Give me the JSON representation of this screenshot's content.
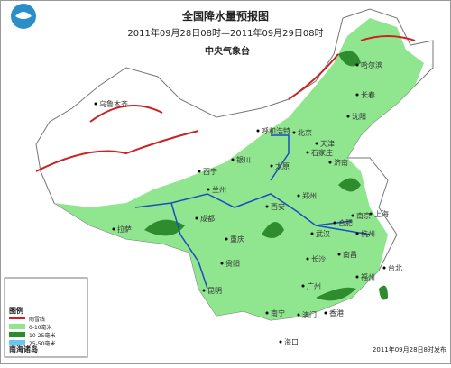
{
  "header": {
    "title": "全国降水量预报图",
    "subtitle": "2011年09月28日08时—2011年09月29日08时",
    "agency": "中央气象台"
  },
  "legend": {
    "title": "图例",
    "items": [
      {
        "label": "雨雪线",
        "color": "#cc2222"
      },
      {
        "label": "0-10毫米",
        "color": "#8fe68f"
      },
      {
        "label": "10-25毫米",
        "color": "#2e8b2e"
      },
      {
        "label": "25-50毫米",
        "color": "#66c8f0"
      }
    ]
  },
  "inset": {
    "label": "南海诸岛"
  },
  "footer": "2011年09月28日8时发布",
  "cities": [
    {
      "label": "乌鲁木齐"
    },
    {
      "label": "哈尔滨"
    },
    {
      "label": "长春"
    },
    {
      "label": "沈阳"
    },
    {
      "label": "北京"
    },
    {
      "label": "天津"
    },
    {
      "label": "石家庄"
    },
    {
      "label": "太原"
    },
    {
      "label": "呼和浩特"
    },
    {
      "label": "银川"
    },
    {
      "label": "西宁"
    },
    {
      "label": "兰州"
    },
    {
      "label": "济南"
    },
    {
      "label": "郑州"
    },
    {
      "label": "西安"
    },
    {
      "label": "成都"
    },
    {
      "label": "重庆"
    },
    {
      "label": "武汉"
    },
    {
      "label": "合肥"
    },
    {
      "label": "南京"
    },
    {
      "label": "上海"
    },
    {
      "label": "杭州"
    },
    {
      "label": "长沙"
    },
    {
      "label": "南昌"
    },
    {
      "label": "贵阳"
    },
    {
      "label": "昆明"
    },
    {
      "label": "福州"
    },
    {
      "label": "广州"
    },
    {
      "label": "南宁"
    },
    {
      "label": "拉萨"
    },
    {
      "label": "海口"
    },
    {
      "label": "台北"
    },
    {
      "label": "香港"
    },
    {
      "label": "澳门"
    }
  ]
}
